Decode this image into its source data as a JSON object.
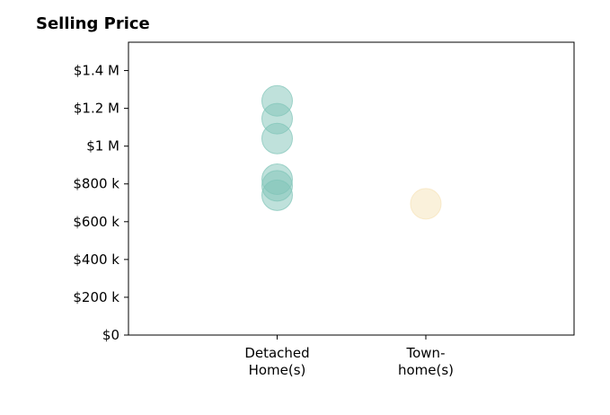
{
  "chart_data": {
    "type": "scatter",
    "title": "Selling Price",
    "xlabel": "",
    "ylabel": "",
    "categories": [
      {
        "lines": [
          "Detached",
          "Home(s)"
        ]
      },
      {
        "lines": [
          "Town-",
          "home(s)"
        ]
      }
    ],
    "ylim": [
      0,
      1550000
    ],
    "yticks": [
      {
        "value": 0,
        "label": "$0"
      },
      {
        "value": 200000,
        "label": "$200 k"
      },
      {
        "value": 400000,
        "label": "$400 k"
      },
      {
        "value": 600000,
        "label": "$600 k"
      },
      {
        "value": 800000,
        "label": "$800 k"
      },
      {
        "value": 1000000,
        "label": "$1 M"
      },
      {
        "value": 1200000,
        "label": "$1.2 M"
      },
      {
        "value": 1400000,
        "label": "$1.4 M"
      }
    ],
    "grid": false,
    "legend": "none",
    "series": [
      {
        "category": 0,
        "color": "#7fc4b8",
        "values": [
          1240000,
          1145000,
          1040000,
          825000,
          790000,
          740000
        ]
      },
      {
        "category": 1,
        "color": "#f6e3b8",
        "values": [
          695000
        ]
      }
    ]
  }
}
